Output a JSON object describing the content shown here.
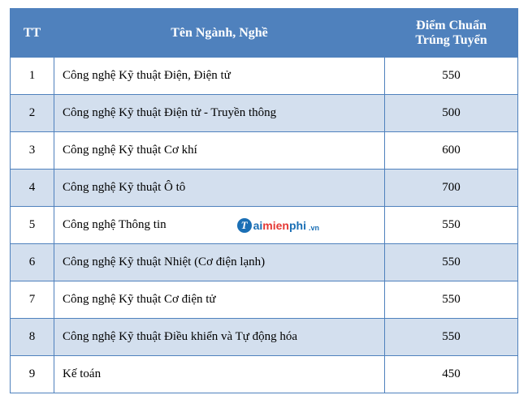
{
  "table": {
    "header_bg": "#4f81bd",
    "row_alt_bg": "#d3dfee",
    "row_bg": "#ffffff",
    "border_color": "#4f81bd",
    "columns": [
      {
        "key": "tt",
        "label": "TT",
        "align": "center"
      },
      {
        "key": "name",
        "label": "Tên Ngành, Nghề",
        "align": "left"
      },
      {
        "key": "score",
        "label": "Điểm Chuẩn Trúng Tuyển",
        "align": "center"
      }
    ],
    "rows": [
      {
        "tt": "1",
        "name": "Công nghệ Kỹ thuật Điện, Điện tử",
        "score": "550"
      },
      {
        "tt": "2",
        "name": "Công nghệ Kỹ thuật Điện tử - Truyền thông",
        "score": "500"
      },
      {
        "tt": "3",
        "name": "Công nghệ Kỹ thuật Cơ khí",
        "score": "600"
      },
      {
        "tt": "4",
        "name": "Công nghệ Kỹ thuật Ô tô",
        "score": "700"
      },
      {
        "tt": "5",
        "name": "Công nghệ Thông tin",
        "score": "550"
      },
      {
        "tt": "6",
        "name": "Công nghệ Kỹ thuật Nhiệt (Cơ điện lạnh)",
        "score": "550"
      },
      {
        "tt": "7",
        "name": "Công nghệ Kỹ thuật Cơ điện tử",
        "score": "550"
      },
      {
        "tt": "8",
        "name": "Công nghệ Kỹ thuật Điều khiển và Tự động hóa",
        "score": "550"
      },
      {
        "tt": "9",
        "name": "Kế toán",
        "score": "450"
      }
    ]
  },
  "watermark": {
    "row_index": 4,
    "letter": "T",
    "prefix": "ai",
    "accent": "mien",
    "suffix": "phi",
    "ext": ".vn"
  }
}
